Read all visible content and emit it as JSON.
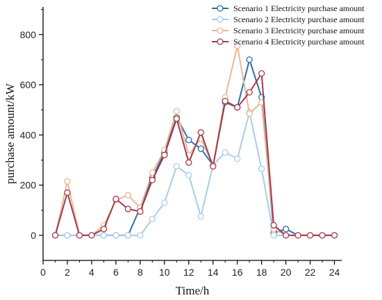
{
  "chart_data": {
    "type": "line",
    "title": "",
    "xlabel": "Time/h",
    "ylabel": "purchase amount/kW",
    "xlim": [
      0,
      24.6
    ],
    "ylim": [
      -100,
      910
    ],
    "xticks": [
      0,
      2,
      4,
      6,
      8,
      10,
      12,
      14,
      16,
      18,
      20,
      22,
      24
    ],
    "yticks": [
      0,
      200,
      400,
      600,
      800
    ],
    "grid": false,
    "legend_position": "top-right",
    "x": [
      1,
      2,
      3,
      4,
      5,
      6,
      7,
      8,
      9,
      10,
      11,
      12,
      13,
      14,
      15,
      16,
      17,
      18,
      19,
      20,
      21,
      22,
      23,
      24
    ],
    "series": [
      {
        "name": "Scenario 1 Electricity  purchase amount",
        "color": "#2b6fa8",
        "values": [
          0,
          0,
          0,
          0,
          0,
          0,
          0,
          110,
          230,
          330,
          470,
          380,
          345,
          280,
          530,
          510,
          700,
          550,
          10,
          25,
          0,
          0,
          0,
          0
        ]
      },
      {
        "name": "Scenario 2 Electricity  purchase amount",
        "color": "#a9cce8",
        "values": [
          0,
          0,
          0,
          0,
          0,
          0,
          0,
          0,
          65,
          130,
          275,
          240,
          75,
          280,
          330,
          305,
          490,
          265,
          0,
          0,
          0,
          0,
          0,
          0
        ]
      },
      {
        "name": "Scenario 3 Electricity  purchase amount",
        "color": "#e6b896",
        "values": [
          0,
          215,
          0,
          0,
          40,
          140,
          160,
          110,
          250,
          340,
          495,
          320,
          385,
          280,
          550,
          755,
          485,
          530,
          25,
          0,
          0,
          0,
          0,
          0
        ]
      },
      {
        "name": "Scenario 4 Electricity  purchase amount",
        "color": "#a23a4b",
        "values": [
          0,
          170,
          0,
          0,
          25,
          145,
          105,
          95,
          220,
          320,
          465,
          290,
          410,
          275,
          535,
          510,
          570,
          645,
          40,
          0,
          0,
          0,
          0,
          0
        ]
      }
    ]
  }
}
